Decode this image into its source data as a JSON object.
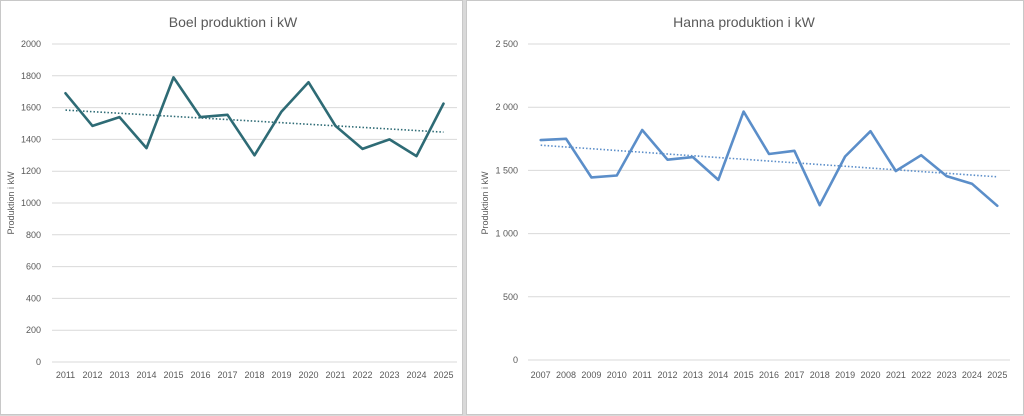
{
  "chart_data": [
    {
      "type": "line",
      "title": "Boel produktion i kW",
      "xlabel": "",
      "ylabel": "Produktion i kW",
      "categories": [
        "2011",
        "2012",
        "2013",
        "2014",
        "2015",
        "2016",
        "2017",
        "2018",
        "2019",
        "2020",
        "2021",
        "2022",
        "2023",
        "2024",
        "2025"
      ],
      "series": [
        {
          "values": [
            1690,
            1485,
            1540,
            1345,
            1790,
            1540,
            1555,
            1300,
            1575,
            1760,
            1485,
            1340,
            1400,
            1295,
            1625
          ],
          "color": "#2e6b75"
        }
      ],
      "trendline": {
        "type": "linear",
        "style": "dotted",
        "color": "#2e6b75"
      },
      "ylim": [
        0,
        2000
      ],
      "yticks": [
        0,
        200,
        400,
        600,
        800,
        1000,
        1200,
        1400,
        1600,
        1800,
        2000
      ],
      "ytick_labels": [
        "0",
        "200",
        "400",
        "600",
        "800",
        "1000",
        "1200",
        "1400",
        "1600",
        "1800",
        "2000"
      ],
      "grid": true
    },
    {
      "type": "line",
      "title": "Hanna produktion i kW",
      "xlabel": "",
      "ylabel": "Produktion i kW",
      "categories": [
        "2007",
        "2008",
        "2009",
        "2010",
        "2011",
        "2012",
        "2013",
        "2014",
        "2015",
        "2016",
        "2017",
        "2018",
        "2019",
        "2020",
        "2021",
        "2022",
        "2023",
        "2024",
        "2025"
      ],
      "series": [
        {
          "values": [
            1740,
            1750,
            1445,
            1460,
            1820,
            1585,
            1605,
            1425,
            1965,
            1630,
            1655,
            1225,
            1610,
            1810,
            1495,
            1620,
            1455,
            1395,
            1220
          ],
          "color": "#5b8ec9"
        }
      ],
      "trendline": {
        "type": "linear",
        "style": "dotted",
        "color": "#5b8ec9"
      },
      "ylim": [
        0,
        2500
      ],
      "yticks": [
        0,
        500,
        1000,
        1500,
        2000,
        2500
      ],
      "ytick_labels": [
        "0",
        "500",
        "1 000",
        "1 500",
        "2 000",
        "2 500"
      ],
      "grid": true
    }
  ]
}
